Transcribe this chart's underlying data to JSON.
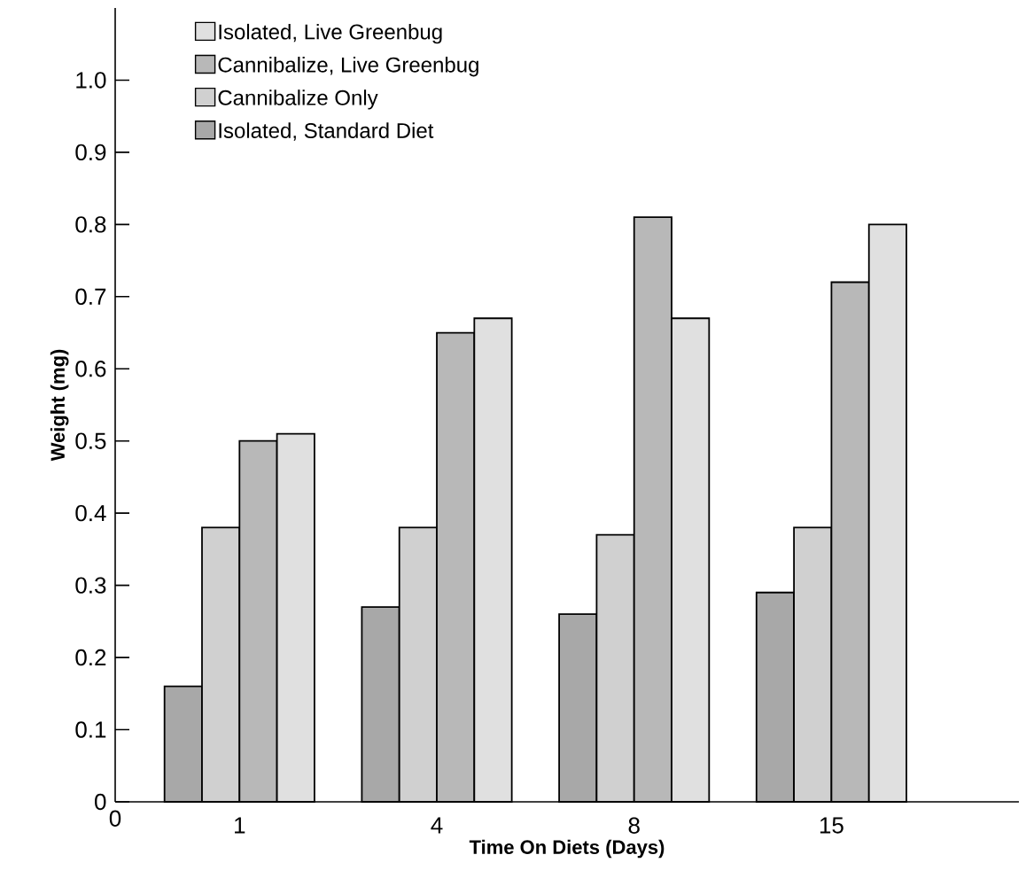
{
  "chart_data": {
    "type": "bar",
    "xlabel": "Time On Diets (Days)",
    "ylabel": "Weight (mg)",
    "categories": [
      "1",
      "4",
      "8",
      "15"
    ],
    "series": [
      {
        "name": "Isolated, Standard Diet",
        "color": "#a8a8a8",
        "values": [
          0.16,
          0.27,
          0.26,
          0.29
        ]
      },
      {
        "name": "Cannibalize Only",
        "color": "#d0d0d0",
        "values": [
          0.38,
          0.38,
          0.37,
          0.38
        ]
      },
      {
        "name": "Cannibalize, Live Greenbug",
        "color": "#b8b8b8",
        "values": [
          0.5,
          0.65,
          0.81,
          0.72
        ]
      },
      {
        "name": "Isolated, Live Greenbug",
        "color": "#e0e0e0",
        "values": [
          0.51,
          0.67,
          0.67,
          0.8
        ]
      }
    ],
    "ylim": [
      0,
      1.1
    ],
    "yticks": [
      0,
      0.1,
      0.2,
      0.3,
      0.4,
      0.5,
      0.6,
      0.7,
      0.8,
      0.9,
      {
        "value": 1.0,
        "label": "1.0"
      }
    ],
    "annotations": [
      "0"
    ],
    "legend": "top left",
    "grid": false
  }
}
